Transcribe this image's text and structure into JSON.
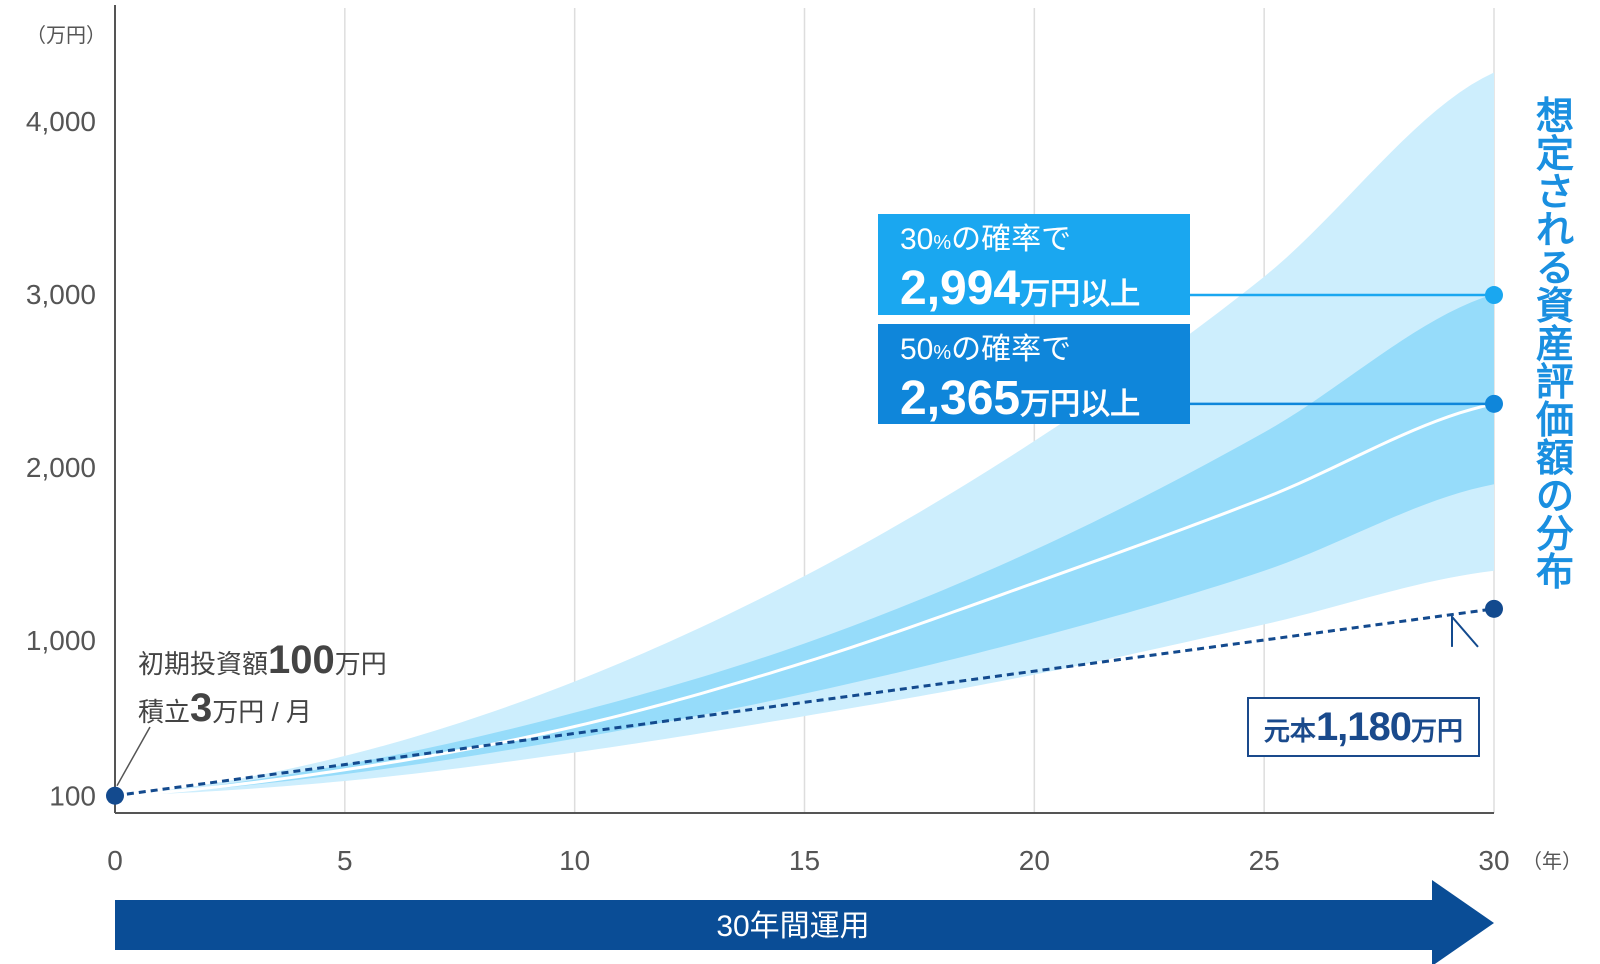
{
  "chart_data": {
    "type": "area",
    "ylabel": "（万円）",
    "xlabel": "（年）",
    "x_ticks": [
      0,
      5,
      10,
      15,
      20,
      25,
      30
    ],
    "y_ticks": [
      {
        "value": 100,
        "label": "100"
      },
      {
        "value": 1000,
        "label": "1,000"
      },
      {
        "value": 2000,
        "label": "2,000"
      },
      {
        "value": 3000,
        "label": "3,000"
      },
      {
        "value": 4000,
        "label": "4,000"
      }
    ],
    "ylim": [
      0,
      4800
    ],
    "xlim": [
      0,
      30
    ],
    "grid": "vertical",
    "x": [
      0,
      5,
      10,
      15,
      20,
      25,
      30
    ],
    "series": [
      {
        "role": "outer-upper",
        "values": [
          100,
          330,
          760,
          1370,
          2150,
          3100,
          4280
        ]
      },
      {
        "role": "inner-upper",
        "values": [
          100,
          280,
          580,
          980,
          1520,
          2200,
          3000
        ]
      },
      {
        "role": "median",
        "values": [
          100,
          250,
          500,
          870,
          1330,
          1820,
          2365
        ]
      },
      {
        "role": "inner-lower",
        "values": [
          100,
          225,
          430,
          690,
          1010,
          1400,
          1900
        ]
      },
      {
        "role": "outer-lower",
        "values": [
          100,
          185,
          350,
          560,
          800,
          1090,
          1400
        ]
      },
      {
        "role": "principal",
        "values": [
          100,
          280,
          460,
          640,
          820,
          1000,
          1180
        ]
      }
    ],
    "annotations": {
      "callout_30": {
        "prefix": "30",
        "percent": "%",
        "text": "の確率で",
        "value_text": "2,994",
        "unit": "万円以上",
        "value": 2994
      },
      "callout_50": {
        "prefix": "50",
        "percent": "%",
        "text": "の確率で",
        "value_text": "2,365",
        "unit": "万円以上",
        "value": 2365
      },
      "start": {
        "line1_prefix": "初期投資額",
        "line1_value": "100",
        "line1_unit": "万円",
        "line2_prefix": "積立",
        "line2_value": "3",
        "line2_unit": "万円 / 月"
      },
      "principal": {
        "label": "元本",
        "value_text": "1,180",
        "unit": "万円",
        "value": 1180
      },
      "distribution_label": "想定される資産評価額の分布",
      "period_arrow": "30年間運用"
    },
    "colors": {
      "outer_band": "#cdeefd",
      "inner_band": "#96dcfa",
      "median_line": "#ffffff",
      "principal_line": "#134a8e",
      "callout_30": "#1aa7f0",
      "callout_50": "#0f86da",
      "arrow": "#0a4d96",
      "distribution_label": "#1a8fe0",
      "grid": "#dddddd"
    }
  }
}
